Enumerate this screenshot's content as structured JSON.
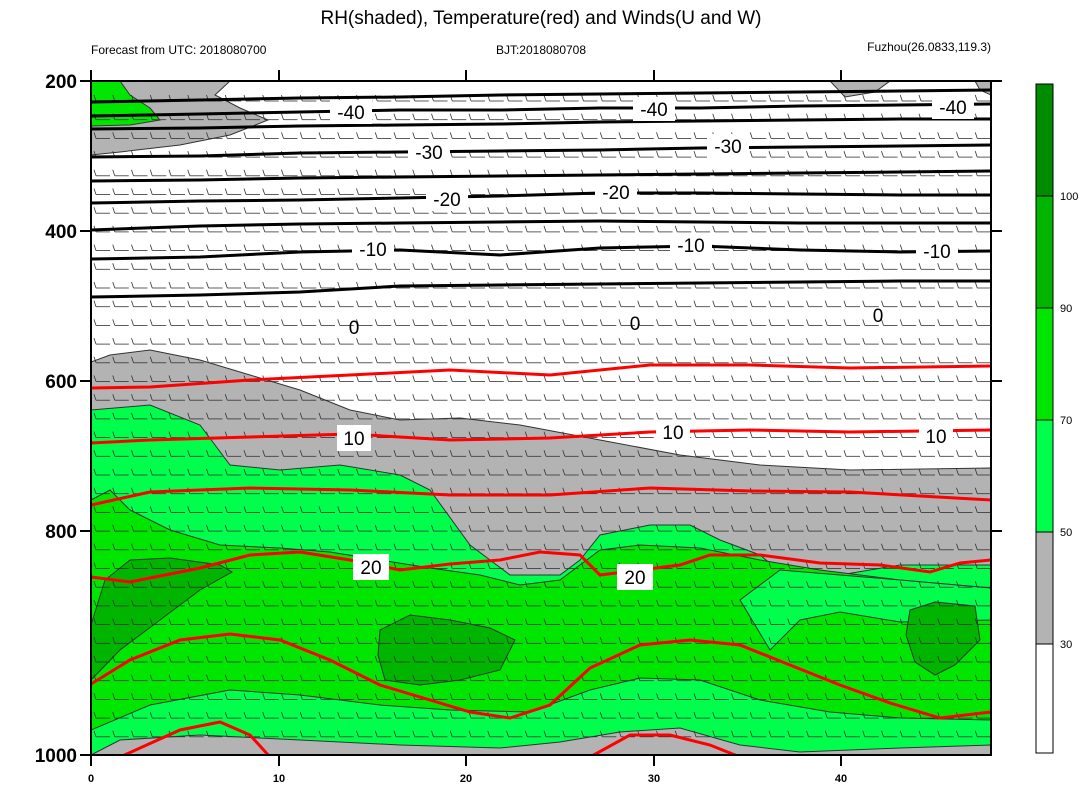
{
  "chart_data": {
    "type": "contour",
    "title": "RH(shaded), Temperature(red) and Winds(U and W)",
    "subtitle_left": "Forecast from UTC: 2018080700",
    "subtitle_center": "BJT:2018080708",
    "subtitle_right": "Fuzhou(26.0833,119.3)",
    "x_ticks": [
      "0",
      "10",
      "20",
      "30",
      "40"
    ],
    "x_range": [
      0,
      48
    ],
    "y_ticks": [
      "200",
      "400",
      "600",
      "800",
      "1000"
    ],
    "y_range": [
      1000,
      200
    ],
    "colorbar": {
      "ticks": [
        "30",
        "50",
        "70",
        "90",
        "100"
      ],
      "colors": [
        "#ffffff",
        "#b3b3b3",
        "#00ff4c",
        "#00e600",
        "#00b400",
        "#008c00"
      ]
    },
    "temperature_contours": [
      {
        "level": "-40",
        "label_x": [
          14,
          30,
          46
        ],
        "color": "#000000"
      },
      {
        "level": "-30",
        "label_x": [
          18.5,
          34
        ],
        "color": "#000000"
      },
      {
        "level": "-20",
        "label_x": [
          19,
          28
        ],
        "color": "#000000"
      },
      {
        "level": "-10",
        "label_x": [
          15,
          32,
          45.5
        ],
        "color": "#000000"
      },
      {
        "level": "0",
        "label_x": [
          14,
          29,
          42
        ],
        "color": "#000000"
      },
      {
        "level": "10",
        "label_x": [
          14,
          30,
          45.5
        ],
        "color": "#ff0000"
      },
      {
        "level": "20",
        "label_x": [
          15,
          29
        ],
        "color": "#ff0000"
      }
    ]
  }
}
